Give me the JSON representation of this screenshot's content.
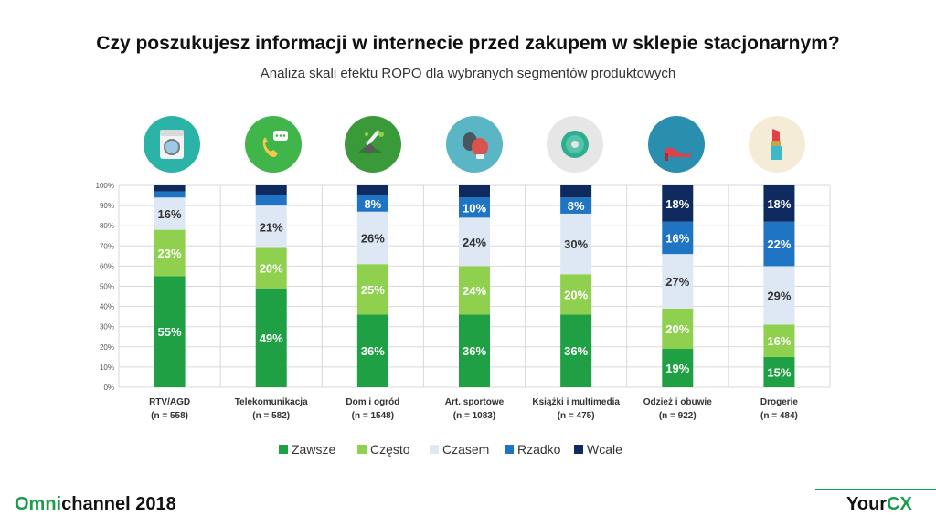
{
  "header": {
    "title": "Czy poszukujesz informacji w internecie przed zakupem w sklepie stacjonarnym?",
    "subtitle": "Analiza skali efektu ROPO dla wybranych segmentów produktowych"
  },
  "icons": [
    {
      "name": "washing-machine-icon",
      "bg": "#2bb3a8"
    },
    {
      "name": "phone-chat-icon",
      "bg": "#3fb54a"
    },
    {
      "name": "garden-shovel-icon",
      "bg": "#3a9a3a"
    },
    {
      "name": "boxing-gloves-icon",
      "bg": "#5ab6c4"
    },
    {
      "name": "cd-disc-icon",
      "bg": "#e6e6e6"
    },
    {
      "name": "high-heel-shoe-icon",
      "bg": "#2a8fae"
    },
    {
      "name": "lipstick-icon",
      "bg": "#f4ecd6"
    }
  ],
  "chart_data": {
    "type": "bar",
    "stacked": true,
    "categories": [
      "RTV/AGD",
      "Telekomunikacja",
      "Dom i ogród",
      "Art. sportowe",
      "Książki i multimedia",
      "Odzież i obuwie",
      "Drogerie"
    ],
    "sample_sizes": [
      "(n = 558)",
      "(n = 582)",
      "(n = 1548)",
      "(n = 1083)",
      "(n = 475)",
      "(n = 922)",
      "(n = 484)"
    ],
    "series": [
      {
        "name": "Zawsze",
        "color": "#1fa045",
        "values": [
          55,
          49,
          36,
          36,
          36,
          19,
          15
        ]
      },
      {
        "name": "Często",
        "color": "#8fd04e",
        "values": [
          23,
          20,
          25,
          24,
          20,
          20,
          16
        ]
      },
      {
        "name": "Czasem",
        "color": "#dde8f4",
        "values": [
          16,
          21,
          26,
          24,
          30,
          27,
          29
        ]
      },
      {
        "name": "Rzadko",
        "color": "#1f74c4",
        "values": [
          3,
          5,
          8,
          10,
          8,
          16,
          22
        ]
      },
      {
        "name": "Wcale",
        "color": "#0f2a5e",
        "values": [
          3,
          5,
          5,
          6,
          6,
          18,
          18
        ]
      }
    ],
    "data_labels": [
      [
        "55%",
        "49%",
        "36%",
        "36%",
        "36%",
        "19%",
        "15%"
      ],
      [
        "23%",
        "20%",
        "25%",
        "24%",
        "20%",
        "20%",
        "16%"
      ],
      [
        "16%",
        "21%",
        "26%",
        "24%",
        "30%",
        "27%",
        "29%"
      ],
      [
        "",
        "",
        "8%",
        "10%",
        "8%",
        "16%",
        "22%"
      ],
      [
        "",
        "",
        "",
        "",
        "",
        "18%",
        "18%"
      ]
    ],
    "yticks": [
      "0%",
      "10%",
      "20%",
      "30%",
      "40%",
      "50%",
      "60%",
      "70%",
      "80%",
      "90%",
      "100%"
    ],
    "ylim": [
      0,
      100
    ],
    "grid": true,
    "legend_position": "bottom"
  },
  "footer": {
    "brand_accent": "Omni",
    "brand_rest": "channel 2018",
    "logo_main": "Your",
    "logo_accent": "CX"
  }
}
